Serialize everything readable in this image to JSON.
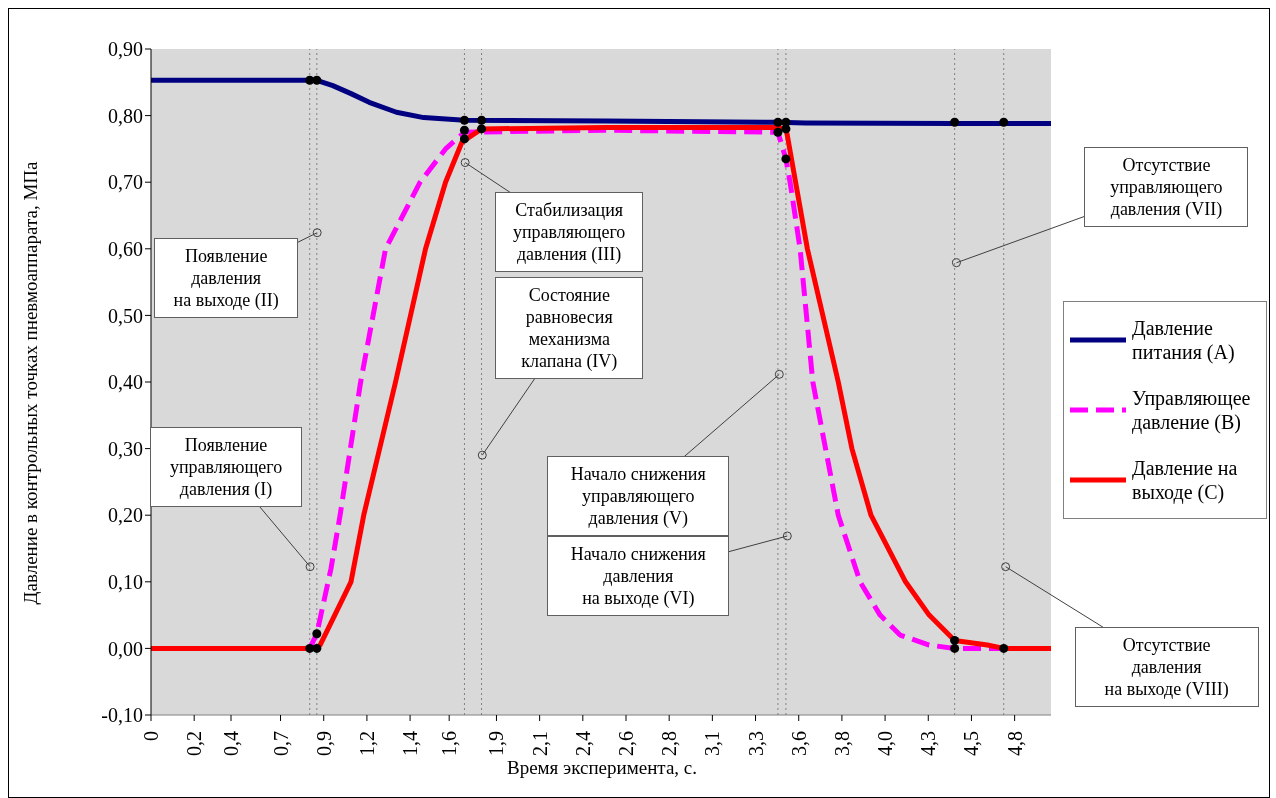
{
  "chart_data": {
    "type": "line",
    "xlabel": "Время эксперимента, с.",
    "ylabel": "Давление в контрольных точках пневмоаппарата, МПа",
    "xlim": [
      0,
      4.95
    ],
    "ylim": [
      -0.1,
      0.9
    ],
    "xticks": [
      0,
      {
        "value": 0.2375,
        "label": "0,2"
      },
      {
        "value": 0.44,
        "label": "0,4"
      },
      {
        "value": 0.7125,
        "label": "0,7"
      },
      {
        "value": 0.95,
        "label": "0,9"
      },
      {
        "value": 1.1875,
        "label": "1,2"
      },
      {
        "value": 1.425,
        "label": "1,4"
      },
      {
        "value": 1.64,
        "label": "1,6"
      },
      {
        "value": 1.9,
        "label": "1,9"
      },
      {
        "value": 2.1375,
        "label": "2,1"
      },
      {
        "value": 2.375,
        "label": "2,4"
      },
      {
        "value": 2.6125,
        "label": "2,6"
      },
      {
        "value": 2.85,
        "label": "2,8"
      },
      {
        "value": 3.0875,
        "label": "3,1"
      },
      {
        "value": 3.325,
        "label": "3,3"
      },
      {
        "value": 3.5625,
        "label": "3,6"
      },
      {
        "value": 3.8,
        "label": "3,8"
      },
      {
        "value": 4.0375,
        "label": "4,0"
      },
      {
        "value": 4.275,
        "label": "4,3"
      },
      {
        "value": 4.5125,
        "label": "4,5"
      },
      {
        "value": 4.75,
        "label": "4,8"
      }
    ],
    "yticks": [
      {
        "value": -0.1,
        "label": "-0,10"
      },
      {
        "value": 0,
        "label": "0,00"
      },
      {
        "value": 0.1,
        "label": "0,10"
      },
      {
        "value": 0.2,
        "label": "0,20"
      },
      {
        "value": 0.3,
        "label": "0,30"
      },
      {
        "value": 0.4,
        "label": "0,40"
      },
      {
        "value": 0.5,
        "label": "0,50"
      },
      {
        "value": 0.6,
        "label": "0,60"
      },
      {
        "value": 0.7,
        "label": "0,70"
      },
      {
        "value": 0.8,
        "label": "0,80"
      },
      {
        "value": 0.9,
        "label": "0,90"
      }
    ],
    "grid": false,
    "legend": "right",
    "marker": "none",
    "series": [
      {
        "name": "Давление питания (A)",
        "color": "#000080",
        "line_style": "solid",
        "x": [
          0,
          0.873,
          0.912,
          1.0,
          1.1,
          1.2,
          1.35,
          1.5,
          1.724,
          2.5,
          3.448,
          3.6,
          4.42,
          4.95
        ],
        "values": [
          0.853,
          0.853,
          0.853,
          0.845,
          0.833,
          0.82,
          0.805,
          0.797,
          0.793,
          0.792,
          0.79,
          0.789,
          0.788,
          0.788
        ]
      },
      {
        "name": "Управляющее давление (B)",
        "color": "#ff00ff",
        "line_style": "dashed",
        "x": [
          0,
          0.873,
          0.912,
          0.99,
          1.04,
          1.153,
          1.29,
          1.48,
          1.62,
          1.724,
          2.5,
          3.448,
          3.492,
          3.515,
          3.57,
          3.64,
          3.78,
          3.9,
          4.01,
          4.12,
          4.28,
          4.42,
          4.95
        ],
        "values": [
          0,
          0,
          0.022,
          0.12,
          0.2,
          0.4,
          0.6,
          0.7,
          0.75,
          0.775,
          0.778,
          0.775,
          0.735,
          0.7,
          0.6,
          0.4,
          0.2,
          0.1,
          0.05,
          0.02,
          0.005,
          0,
          0
        ]
      },
      {
        "name": "Давление на выходе (C)",
        "color": "#ff0000",
        "line_style": "solid",
        "x": [
          0,
          0.912,
          0.93,
          1.1,
          1.17,
          1.345,
          1.51,
          1.62,
          1.71,
          1.818,
          2.5,
          3.448,
          3.492,
          3.5,
          3.61,
          3.78,
          3.855,
          3.96,
          4.15,
          4.28,
          4.42,
          4.6,
          4.69,
          4.95
        ],
        "values": [
          0,
          0,
          0.005,
          0.1,
          0.2,
          0.4,
          0.6,
          0.7,
          0.76,
          0.78,
          0.782,
          0.782,
          0.78,
          0.77,
          0.6,
          0.4,
          0.3,
          0.2,
          0.1,
          0.05,
          0.012,
          0.005,
          0,
          0
        ]
      },
      {
        "type": "scatter",
        "color": "#000000",
        "marker": "circle",
        "x": [
          0.873,
          0.912,
          1.724,
          1.724,
          1.724,
          1.818,
          1.818,
          3.448,
          3.448,
          3.492,
          3.492,
          3.492,
          4.42,
          4.69,
          0.873,
          0.912,
          0.912,
          4.42,
          4.42,
          4.69
        ],
        "values": [
          0.853,
          0.853,
          0.793,
          0.765,
          0.778,
          0.793,
          0.78,
          0.79,
          0.775,
          0.79,
          0.78,
          0.735,
          0.79,
          0.79,
          0,
          0,
          0.022,
          0.012,
          0,
          0
        ]
      }
    ],
    "ref_lines": [
      {
        "axis": "x",
        "value": 0.873,
        "color": "#808080",
        "line_style": "dotted"
      },
      {
        "axis": "x",
        "value": 0.912,
        "color": "#808080",
        "line_style": "dotted"
      },
      {
        "axis": "x",
        "value": 1.724,
        "color": "#808080",
        "line_style": "dotted"
      },
      {
        "axis": "x",
        "value": 1.818,
        "color": "#808080",
        "line_style": "dotted"
      },
      {
        "axis": "x",
        "value": 3.448,
        "color": "#808080",
        "line_style": "dotted"
      },
      {
        "axis": "x",
        "value": 3.492,
        "color": "#808080",
        "line_style": "dotted"
      },
      {
        "axis": "x",
        "value": 4.42,
        "color": "#808080",
        "line_style": "dotted"
      },
      {
        "axis": "x",
        "value": 4.69,
        "color": "#808080",
        "line_style": "dotted"
      }
    ],
    "annotations": [
      {
        "text": "Появление\nуправляющего\nдавления (I)",
        "x": 0.873,
        "y": 0.125
      },
      {
        "text": "Появление\nдавления\nна выходе (II)",
        "x": 0.912,
        "y": 0.625
      },
      {
        "text": "Стабилизация\nуправляющего\nдавления (III)",
        "x": 1.724,
        "y": 0.73
      },
      {
        "text": "Состояние\nравновесия\nмеханизма\nклапана (IV)",
        "x": 1.818,
        "y": 0.292
      },
      {
        "text": "Начало снижения\nуправляющего\nдавления (V)",
        "x": 3.448,
        "y": 0.413
      },
      {
        "text": "Начало снижения\nдавления\nна выходе (VI)",
        "x": 3.492,
        "y": 0.171
      },
      {
        "text": "Отсутствие\nуправляющего\nдавления (VII)",
        "x": 4.42,
        "y": 0.58
      },
      {
        "text": "Отсутствие\nдавления\nна выходе (VIII)",
        "x": 4.69,
        "y": 0.125
      }
    ]
  }
}
